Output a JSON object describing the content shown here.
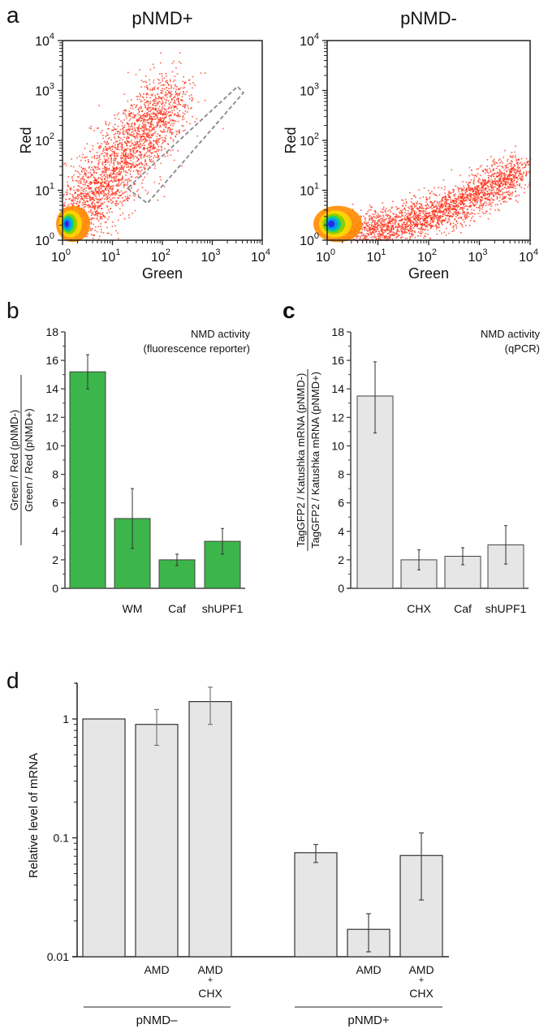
{
  "chart_data": [
    {
      "panel": "a",
      "type": "scatter",
      "title": "pNMD+",
      "xlabel": "Green",
      "ylabel": "Red",
      "xscale": "log",
      "yscale": "log",
      "xlim": [
        1,
        10000
      ],
      "ylim": [
        1,
        10000
      ],
      "xticks": [
        "10^0",
        "10^1",
        "10^2",
        "10^3",
        "10^4"
      ],
      "yticks": [
        "10^0",
        "10^1",
        "10^2",
        "10^3",
        "10^4"
      ],
      "distribution": "diagonal cloud rising steeply, Red roughly tracking Green above the diagonal",
      "gate_polygon": [
        [
          20,
          11
        ],
        [
          50,
          5.5
        ],
        [
          4200,
          900
        ],
        [
          3200,
          1200
        ]
      ]
    },
    {
      "panel": "a",
      "type": "scatter",
      "title": "pNMD-",
      "xlabel": "Green",
      "ylabel": "Red",
      "xscale": "log",
      "yscale": "log",
      "xlim": [
        1,
        10000
      ],
      "ylim": [
        1,
        10000
      ],
      "xticks": [
        "10^0",
        "10^1",
        "10^2",
        "10^3",
        "10^4"
      ],
      "yticks": [
        "10^0",
        "10^1",
        "10^2",
        "10^3",
        "10^4"
      ],
      "distribution": "curved cloud below the diagonal"
    },
    {
      "panel": "b",
      "type": "bar",
      "annotation": [
        "NMD activity",
        "(fluorescence reporter)"
      ],
      "ylabel_numerator": "Green / Red (pNMD-)",
      "ylabel_denominator": "Green / Red (pNMD+)",
      "categories": [
        "",
        "WM",
        "Caf",
        "shUPF1"
      ],
      "values": [
        15.2,
        4.9,
        2.0,
        3.3
      ],
      "errors_low": [
        14.0,
        2.8,
        1.6,
        2.4
      ],
      "errors_high": [
        16.4,
        7.0,
        2.4,
        4.2
      ],
      "ylim": [
        0,
        18
      ],
      "yticks": [
        "0",
        "2",
        "4",
        "6",
        "8",
        "10",
        "12",
        "14",
        "16",
        "18"
      ],
      "bar_color": "#3cb54a"
    },
    {
      "panel": "c",
      "type": "bar",
      "annotation": [
        "NMD activity",
        "(qPCR)"
      ],
      "ylabel_numerator": "TagGFP2 / Katushka mRNA (pNMD-)",
      "ylabel_denominator": "TagGFP2 / Katushka mRNA (pNMD+)",
      "categories": [
        "",
        "CHX",
        "Caf",
        "shUPF1"
      ],
      "values": [
        13.5,
        2.0,
        2.25,
        3.05
      ],
      "errors_low": [
        10.9,
        1.3,
        1.65,
        1.7
      ],
      "errors_high": [
        15.9,
        2.7,
        2.85,
        4.4
      ],
      "ylim": [
        0,
        18
      ],
      "yticks": [
        "0",
        "2",
        "4",
        "6",
        "8",
        "10",
        "12",
        "14",
        "16",
        "18"
      ],
      "bar_color": "#e6e6e6"
    },
    {
      "panel": "d",
      "type": "bar",
      "ylabel": "Relative level of mRNA",
      "yscale": "log",
      "ylim": [
        0.01,
        2
      ],
      "yticks": [
        "0.01",
        "0.1",
        "1"
      ],
      "groups": [
        "pNMD–",
        "pNMD+"
      ],
      "categories": [
        {
          "group": "pNMD–",
          "label": [
            "",
            ""
          ]
        },
        {
          "group": "pNMD–",
          "label": [
            "AMD",
            ""
          ]
        },
        {
          "group": "pNMD–",
          "label": [
            "AMD",
            "+",
            "CHX"
          ]
        },
        {
          "group": "pNMD+",
          "label": [
            "",
            ""
          ]
        },
        {
          "group": "pNMD+",
          "label": [
            "AMD",
            ""
          ]
        },
        {
          "group": "pNMD+",
          "label": [
            "AMD",
            "+",
            "CHX"
          ]
        }
      ],
      "values": [
        1.0,
        0.9,
        1.4,
        0.075,
        0.017,
        0.071
      ],
      "errors_low": [
        null,
        0.6,
        0.9,
        0.062,
        0.011,
        0.03
      ],
      "errors_high": [
        null,
        1.2,
        1.85,
        0.088,
        0.023,
        0.11
      ],
      "bar_color": "#e6e6e6"
    }
  ],
  "panel_letters": [
    "a",
    "b",
    "c",
    "d"
  ]
}
